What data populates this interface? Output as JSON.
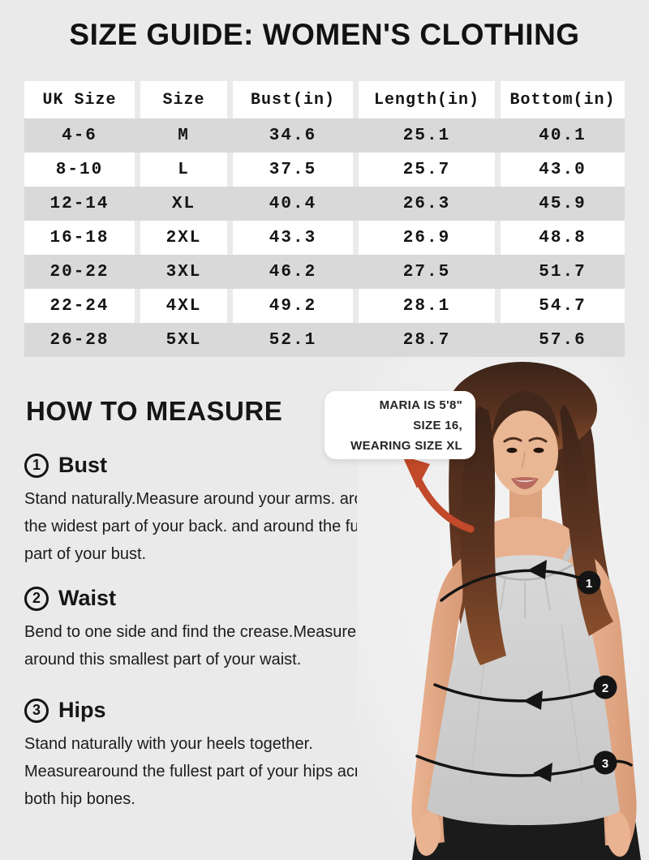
{
  "page": {
    "title": "SIZE GUIDE: WOMEN'S CLOTHING",
    "background_color": "#eaeaea"
  },
  "size_table": {
    "columns": [
      "UK Size",
      "Size",
      "Bust(in)",
      "Length(in)",
      "Bottom(in)"
    ],
    "rows": [
      [
        "4-6",
        "M",
        "34.6",
        "25.1",
        "40.1"
      ],
      [
        "8-10",
        "L",
        "37.5",
        "25.7",
        "43.0"
      ],
      [
        "12-14",
        "XL",
        "40.4",
        "26.3",
        "45.9"
      ],
      [
        "16-18",
        "2XL",
        "43.3",
        "26.9",
        "48.8"
      ],
      [
        "20-22",
        "3XL",
        "46.2",
        "27.5",
        "51.7"
      ],
      [
        "22-24",
        "4XL",
        "49.2",
        "28.1",
        "54.7"
      ],
      [
        "26-28",
        "5XL",
        "52.1",
        "28.7",
        "57.6"
      ]
    ],
    "stripe_color": "#d9d9d9",
    "cell_color": "#ffffff"
  },
  "how_to_measure": {
    "heading": "HOW TO MEASURE",
    "steps": [
      {
        "number": "1",
        "title": "Bust",
        "description": "Stand naturally.Measure around your arms. around the widest part of your back. and around the fullest part of your bust."
      },
      {
        "number": "2",
        "title": "Waist",
        "description": "Bend to one side and find the crease.Measure fully around this smallest part of your waist."
      },
      {
        "number": "3",
        "title": "Hips",
        "description": "Stand naturally with your heels together. Measurearound the fullest part of your hips across both hip bones."
      }
    ]
  },
  "model_callout": {
    "lines": [
      "MARIA IS 5'8\"",
      "SIZE 16,",
      "WEARING SIZE XL"
    ]
  },
  "model_markers": [
    "1",
    "2",
    "3"
  ],
  "colors": {
    "accent_arrow": "#c2492a",
    "marker_circle": "#141414",
    "text": "#141414"
  }
}
